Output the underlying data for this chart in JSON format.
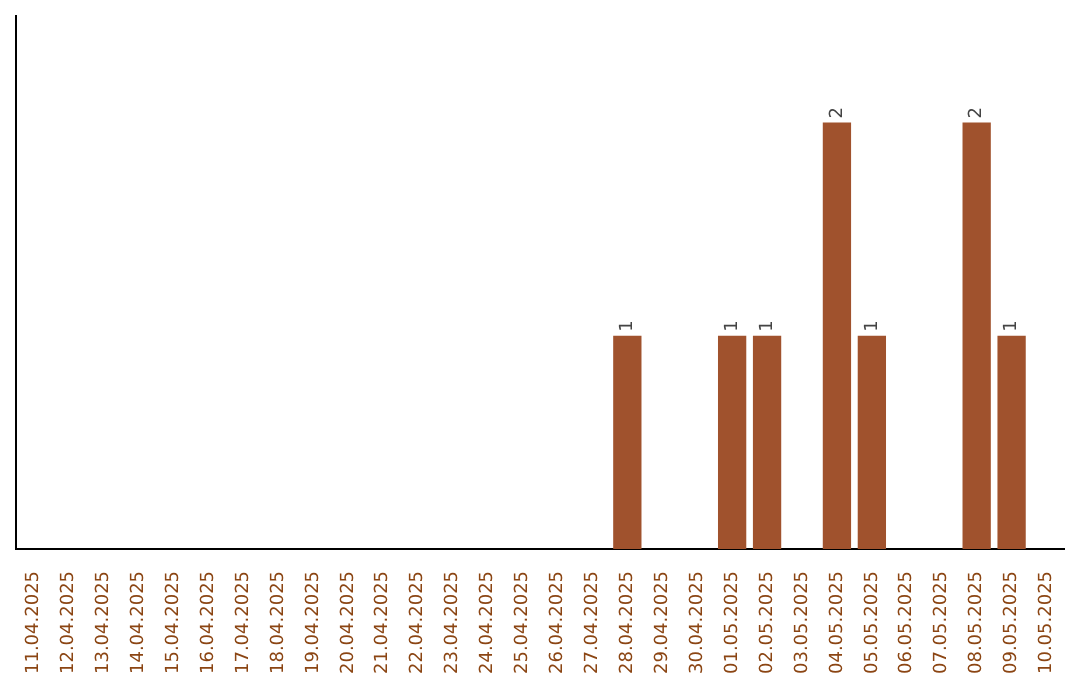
{
  "chart_data": {
    "type": "bar",
    "categories": [
      "11.04.2025",
      "12.04.2025",
      "13.04.2025",
      "14.04.2025",
      "15.04.2025",
      "16.04.2025",
      "17.04.2025",
      "18.04.2025",
      "19.04.2025",
      "20.04.2025",
      "21.04.2025",
      "22.04.2025",
      "23.04.2025",
      "24.04.2025",
      "25.04.2025",
      "26.04.2025",
      "27.04.2025",
      "28.04.2025",
      "29.04.2025",
      "30.04.2025",
      "01.05.2025",
      "02.05.2025",
      "03.05.2025",
      "04.05.2025",
      "05.05.2025",
      "06.05.2025",
      "07.05.2025",
      "08.05.2025",
      "09.05.2025",
      "10.05.2025"
    ],
    "values": [
      null,
      null,
      null,
      null,
      null,
      null,
      null,
      null,
      null,
      null,
      null,
      null,
      null,
      null,
      null,
      null,
      null,
      1,
      null,
      null,
      1,
      1,
      null,
      2,
      1,
      null,
      null,
      2,
      1,
      null
    ],
    "color": "#a0522d",
    "data_labels": true,
    "tick_labels": "x"
  }
}
